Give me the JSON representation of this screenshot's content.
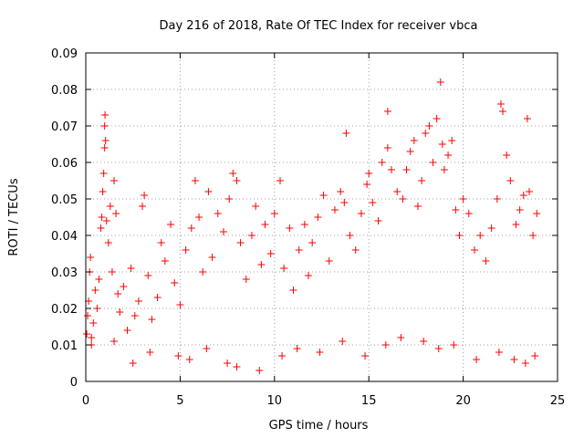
{
  "chart_data": {
    "type": "scatter",
    "title": "Day 216 of 2018, Rate Of TEC Index for receiver vbca",
    "xlabel": "GPS time / hours",
    "ylabel": "ROTI / TECUs",
    "xlim": [
      0,
      25
    ],
    "ylim": [
      0,
      0.09
    ],
    "xticks": [
      0,
      5,
      10,
      15,
      20,
      25
    ],
    "yticks": [
      0,
      0.01,
      0.02,
      0.03,
      0.04,
      0.05,
      0.06,
      0.07,
      0.08,
      0.09
    ],
    "xtick_labels": [
      "0",
      "5",
      "10",
      "15",
      "20",
      "25"
    ],
    "ytick_labels": [
      "0",
      "0.01",
      "0.02",
      "0.03",
      "0.04",
      "0.05",
      "0.06",
      "0.07",
      "0.08",
      "0.09"
    ],
    "grid": true,
    "marker": "plus",
    "color": "#ff0000",
    "series": [
      {
        "points": [
          [
            0.05,
            0.013
          ],
          [
            0.1,
            0.018
          ],
          [
            0.15,
            0.022
          ],
          [
            0.2,
            0.03
          ],
          [
            0.25,
            0.034
          ],
          [
            0.3,
            0.012
          ],
          [
            0.4,
            0.016
          ],
          [
            0.5,
            0.025
          ],
          [
            0.6,
            0.02
          ],
          [
            0.7,
            0.028
          ],
          [
            0.8,
            0.042
          ],
          [
            0.85,
            0.045
          ],
          [
            0.9,
            0.052
          ],
          [
            0.95,
            0.057
          ],
          [
            1.0,
            0.064
          ],
          [
            1.0,
            0.07
          ],
          [
            1.02,
            0.073
          ],
          [
            1.05,
            0.066
          ],
          [
            1.1,
            0.044
          ],
          [
            1.2,
            0.038
          ],
          [
            1.3,
            0.048
          ],
          [
            1.4,
            0.03
          ],
          [
            1.5,
            0.055
          ],
          [
            1.6,
            0.046
          ],
          [
            1.7,
            0.024
          ],
          [
            1.8,
            0.019
          ],
          [
            2.0,
            0.026
          ],
          [
            2.2,
            0.014
          ],
          [
            2.4,
            0.031
          ],
          [
            2.6,
            0.018
          ],
          [
            2.8,
            0.022
          ],
          [
            3.0,
            0.048
          ],
          [
            3.1,
            0.051
          ],
          [
            3.3,
            0.029
          ],
          [
            3.5,
            0.017
          ],
          [
            3.8,
            0.023
          ],
          [
            4.0,
            0.038
          ],
          [
            4.2,
            0.033
          ],
          [
            4.5,
            0.043
          ],
          [
            4.7,
            0.027
          ],
          [
            5.0,
            0.021
          ],
          [
            5.3,
            0.036
          ],
          [
            5.6,
            0.042
          ],
          [
            5.8,
            0.055
          ],
          [
            6.0,
            0.045
          ],
          [
            6.2,
            0.03
          ],
          [
            6.5,
            0.052
          ],
          [
            6.7,
            0.034
          ],
          [
            7.0,
            0.046
          ],
          [
            7.3,
            0.041
          ],
          [
            7.6,
            0.05
          ],
          [
            7.8,
            0.057
          ],
          [
            8.0,
            0.055
          ],
          [
            8.2,
            0.038
          ],
          [
            8.5,
            0.028
          ],
          [
            8.8,
            0.04
          ],
          [
            9.0,
            0.048
          ],
          [
            9.3,
            0.032
          ],
          [
            9.5,
            0.043
          ],
          [
            9.8,
            0.035
          ],
          [
            10.0,
            0.046
          ],
          [
            10.3,
            0.055
          ],
          [
            10.5,
            0.031
          ],
          [
            10.8,
            0.042
          ],
          [
            11.0,
            0.025
          ],
          [
            11.3,
            0.036
          ],
          [
            11.6,
            0.043
          ],
          [
            11.8,
            0.029
          ],
          [
            12.0,
            0.038
          ],
          [
            12.3,
            0.045
          ],
          [
            12.6,
            0.051
          ],
          [
            12.9,
            0.033
          ],
          [
            13.2,
            0.047
          ],
          [
            13.5,
            0.052
          ],
          [
            13.7,
            0.049
          ],
          [
            13.8,
            0.068
          ],
          [
            14.0,
            0.04
          ],
          [
            14.3,
            0.036
          ],
          [
            14.6,
            0.046
          ],
          [
            14.9,
            0.054
          ],
          [
            15.0,
            0.057
          ],
          [
            15.2,
            0.049
          ],
          [
            15.5,
            0.044
          ],
          [
            15.7,
            0.06
          ],
          [
            16.0,
            0.064
          ],
          [
            16.0,
            0.074
          ],
          [
            16.2,
            0.058
          ],
          [
            16.5,
            0.052
          ],
          [
            16.8,
            0.05
          ],
          [
            17.0,
            0.058
          ],
          [
            17.2,
            0.063
          ],
          [
            17.4,
            0.066
          ],
          [
            17.6,
            0.048
          ],
          [
            17.8,
            0.055
          ],
          [
            18.0,
            0.068
          ],
          [
            18.2,
            0.07
          ],
          [
            18.4,
            0.06
          ],
          [
            18.6,
            0.072
          ],
          [
            18.8,
            0.082
          ],
          [
            18.9,
            0.065
          ],
          [
            19.0,
            0.058
          ],
          [
            19.2,
            0.062
          ],
          [
            19.4,
            0.066
          ],
          [
            19.6,
            0.047
          ],
          [
            19.8,
            0.04
          ],
          [
            20.0,
            0.05
          ],
          [
            20.3,
            0.046
          ],
          [
            20.6,
            0.036
          ],
          [
            20.9,
            0.04
          ],
          [
            21.2,
            0.033
          ],
          [
            21.5,
            0.042
          ],
          [
            21.8,
            0.05
          ],
          [
            22.0,
            0.076
          ],
          [
            22.1,
            0.074
          ],
          [
            22.3,
            0.062
          ],
          [
            22.5,
            0.055
          ],
          [
            22.8,
            0.043
          ],
          [
            23.0,
            0.047
          ],
          [
            23.2,
            0.051
          ],
          [
            23.4,
            0.072
          ],
          [
            23.5,
            0.052
          ],
          [
            23.7,
            0.04
          ],
          [
            23.9,
            0.046
          ],
          [
            0.3,
            0.01
          ],
          [
            1.5,
            0.011
          ],
          [
            2.5,
            0.005
          ],
          [
            3.4,
            0.008
          ],
          [
            4.9,
            0.007
          ],
          [
            5.5,
            0.006
          ],
          [
            6.4,
            0.009
          ],
          [
            7.5,
            0.005
          ],
          [
            8.0,
            0.004
          ],
          [
            9.2,
            0.003
          ],
          [
            10.4,
            0.007
          ],
          [
            11.2,
            0.009
          ],
          [
            12.4,
            0.008
          ],
          [
            13.6,
            0.011
          ],
          [
            14.8,
            0.007
          ],
          [
            15.9,
            0.01
          ],
          [
            16.7,
            0.012
          ],
          [
            17.9,
            0.011
          ],
          [
            18.7,
            0.009
          ],
          [
            19.5,
            0.01
          ],
          [
            20.7,
            0.006
          ],
          [
            21.9,
            0.008
          ],
          [
            22.7,
            0.006
          ],
          [
            23.3,
            0.005
          ],
          [
            23.8,
            0.007
          ]
        ]
      }
    ]
  }
}
